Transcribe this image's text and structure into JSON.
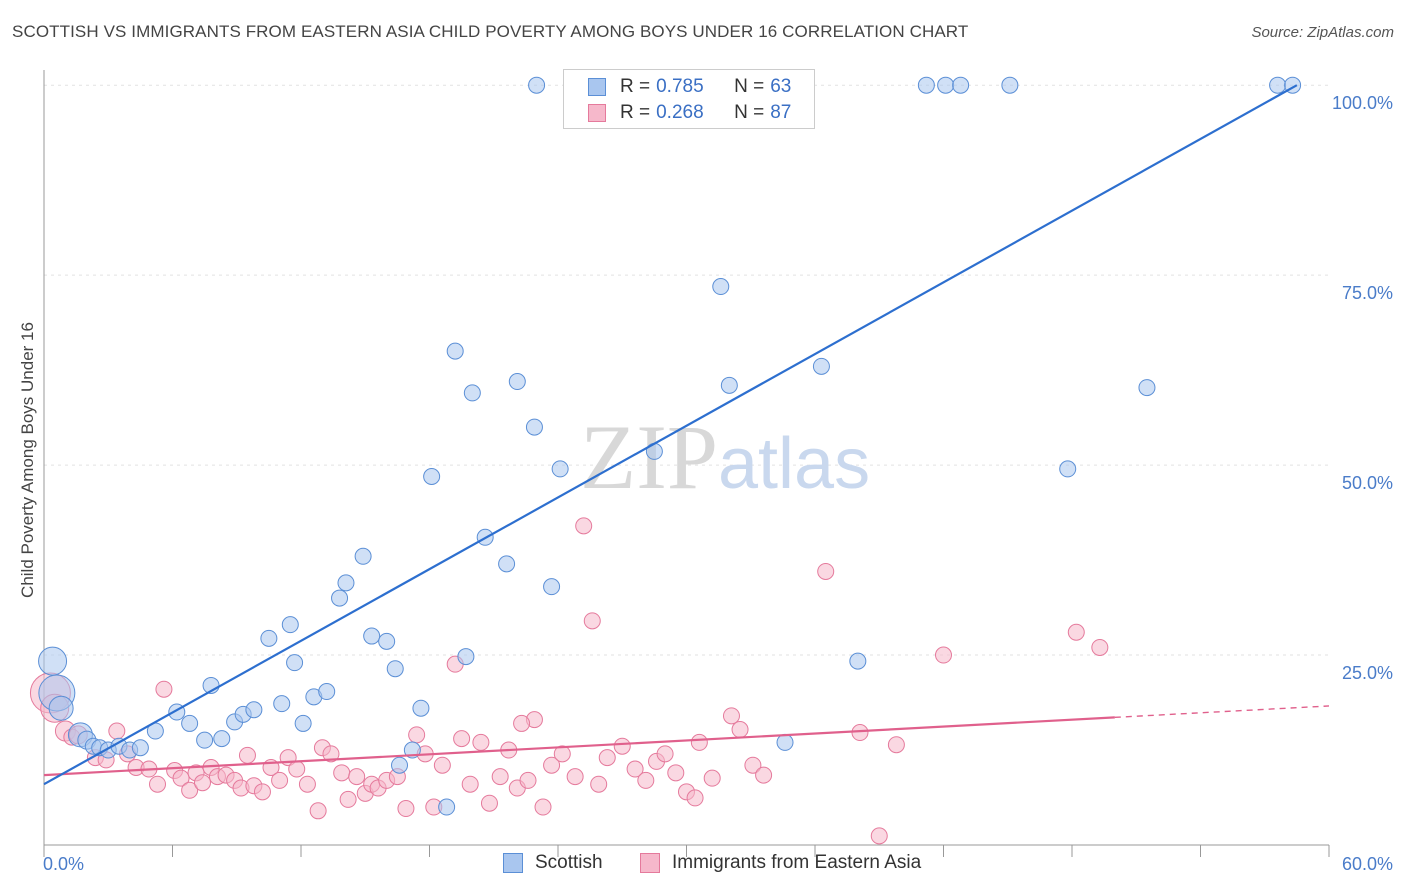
{
  "title": "SCOTTISH VS IMMIGRANTS FROM EASTERN ASIA CHILD POVERTY AMONG BOYS UNDER 16 CORRELATION CHART",
  "source": "Source: ZipAtlas.com",
  "watermark": {
    "zip": "ZIP",
    "atlas": "atlas"
  },
  "colors": {
    "scottish_fill": "#a9c6ef",
    "scottish_stroke": "#5b8fd6",
    "scottish_line": "#2d6fcf",
    "asia_fill": "#f6b8cb",
    "asia_stroke": "#e57a9c",
    "asia_line": "#e0608c",
    "tick_text": "#4a7cc9",
    "grid": "#e2e2e2"
  },
  "legend": {
    "rows": [
      {
        "r_label": "R =",
        "r_value": "0.785",
        "n_label": "N =",
        "n_value": "63"
      },
      {
        "r_label": "R =",
        "r_value": "0.268",
        "n_label": "N =",
        "n_value": "87"
      }
    ]
  },
  "bottom_legend": {
    "scottish": "Scottish",
    "asia": "Immigrants from Eastern Asia"
  },
  "chart_data": {
    "type": "scatter",
    "title": "SCOTTISH VS IMMIGRANTS FROM EASTERN ASIA CHILD POVERTY AMONG BOYS UNDER 16 CORRELATION CHART",
    "xlabel": "",
    "ylabel": "Child Poverty Among Boys Under 16",
    "xlim": [
      0,
      60
    ],
    "ylim": [
      0,
      102
    ],
    "x_tick_labels": [
      "0.0%",
      "60.0%"
    ],
    "y_tick_labels": [
      "100.0%",
      "75.0%",
      "50.0%",
      "25.0%"
    ],
    "y_ticks": [
      100,
      75,
      50,
      25
    ],
    "grid": true,
    "legend_position": "top-center",
    "series": [
      {
        "name": "Scottish",
        "r": 0.785,
        "n": 63,
        "trend": {
          "x": [
            0,
            58.5
          ],
          "y": [
            8,
            100
          ]
        },
        "points": [
          [
            0.4,
            24.2,
            14
          ],
          [
            0.6,
            20.0,
            18
          ],
          [
            0.8,
            18.0,
            12
          ],
          [
            1.7,
            14.5,
            12
          ],
          [
            2.0,
            13.8,
            9
          ],
          [
            2.3,
            13.0,
            8
          ],
          [
            2.6,
            12.8,
            8
          ],
          [
            3.0,
            12.5,
            8
          ],
          [
            3.5,
            13.0,
            8
          ],
          [
            4.0,
            12.5,
            8
          ],
          [
            4.5,
            12.8,
            8
          ],
          [
            5.2,
            15.0,
            8
          ],
          [
            6.2,
            17.5,
            8
          ],
          [
            6.8,
            16.0,
            8
          ],
          [
            7.5,
            13.8,
            8
          ],
          [
            7.8,
            21.0,
            8
          ],
          [
            8.3,
            14.0,
            8
          ],
          [
            8.9,
            16.2,
            8
          ],
          [
            9.3,
            17.2,
            8
          ],
          [
            9.8,
            17.8,
            8
          ],
          [
            10.5,
            27.2,
            8
          ],
          [
            11.1,
            18.6,
            8
          ],
          [
            11.5,
            29.0,
            8
          ],
          [
            11.7,
            24.0,
            8
          ],
          [
            12.1,
            16.0,
            8
          ],
          [
            12.6,
            19.5,
            8
          ],
          [
            13.2,
            20.2,
            8
          ],
          [
            13.8,
            32.5,
            8
          ],
          [
            14.1,
            34.5,
            8
          ],
          [
            14.9,
            38.0,
            8
          ],
          [
            15.3,
            27.5,
            8
          ],
          [
            16.0,
            26.8,
            8
          ],
          [
            16.4,
            23.2,
            8
          ],
          [
            16.6,
            10.5,
            8
          ],
          [
            17.2,
            12.5,
            8
          ],
          [
            17.6,
            18.0,
            8
          ],
          [
            18.1,
            48.5,
            8
          ],
          [
            18.8,
            5.0,
            8
          ],
          [
            19.2,
            65.0,
            8
          ],
          [
            19.7,
            24.8,
            8
          ],
          [
            20.0,
            59.5,
            8
          ],
          [
            20.6,
            40.5,
            8
          ],
          [
            21.6,
            37.0,
            8
          ],
          [
            22.1,
            61.0,
            8
          ],
          [
            22.9,
            55.0,
            8
          ],
          [
            23.0,
            100.0,
            8
          ],
          [
            23.7,
            34.0,
            8
          ],
          [
            24.1,
            49.5,
            8
          ],
          [
            26.8,
            100.0,
            8
          ],
          [
            28.5,
            51.8,
            8
          ],
          [
            31.6,
            73.5,
            8
          ],
          [
            32.0,
            60.5,
            8
          ],
          [
            34.6,
            13.5,
            8
          ],
          [
            36.3,
            63.0,
            8
          ],
          [
            38.0,
            24.2,
            8
          ],
          [
            41.2,
            100.0,
            8
          ],
          [
            42.1,
            100.0,
            8
          ],
          [
            42.8,
            100.0,
            8
          ],
          [
            45.1,
            100.0,
            8
          ],
          [
            47.8,
            49.5,
            8
          ],
          [
            51.5,
            60.2,
            8
          ],
          [
            57.6,
            100.0,
            8
          ],
          [
            58.3,
            100.0,
            8
          ]
        ]
      },
      {
        "name": "Immigrants from Eastern Asia",
        "r": 0.268,
        "n": 87,
        "trend": {
          "x": [
            0,
            50
          ],
          "y": [
            9.2,
            16.8
          ]
        },
        "trend_dashed": {
          "x": [
            50,
            60
          ],
          "y": [
            16.8,
            18.3
          ]
        },
        "points": [
          [
            0.3,
            20.0,
            20
          ],
          [
            0.5,
            18.0,
            14
          ],
          [
            1.0,
            15.0,
            10
          ],
          [
            1.3,
            14.2,
            8
          ],
          [
            1.6,
            14.5,
            9
          ],
          [
            2.4,
            11.5,
            8
          ],
          [
            2.9,
            11.2,
            8
          ],
          [
            3.4,
            15.0,
            8
          ],
          [
            3.9,
            12.0,
            8
          ],
          [
            4.3,
            10.2,
            8
          ],
          [
            4.9,
            10.0,
            8
          ],
          [
            5.3,
            8.0,
            8
          ],
          [
            5.6,
            20.5,
            8
          ],
          [
            6.1,
            9.8,
            8
          ],
          [
            6.4,
            8.8,
            8
          ],
          [
            6.8,
            7.2,
            8
          ],
          [
            7.1,
            9.5,
            8
          ],
          [
            7.4,
            8.2,
            8
          ],
          [
            7.8,
            10.2,
            8
          ],
          [
            8.1,
            9.0,
            8
          ],
          [
            8.5,
            9.2,
            8
          ],
          [
            8.9,
            8.5,
            8
          ],
          [
            9.2,
            7.5,
            8
          ],
          [
            9.5,
            11.8,
            8
          ],
          [
            9.8,
            7.8,
            8
          ],
          [
            10.2,
            7.0,
            8
          ],
          [
            10.6,
            10.2,
            8
          ],
          [
            11.0,
            8.5,
            8
          ],
          [
            11.4,
            11.5,
            8
          ],
          [
            11.8,
            10.0,
            8
          ],
          [
            12.3,
            8.0,
            8
          ],
          [
            12.8,
            4.5,
            8
          ],
          [
            13.0,
            12.8,
            8
          ],
          [
            13.4,
            12.0,
            8
          ],
          [
            13.9,
            9.5,
            8
          ],
          [
            14.2,
            6.0,
            8
          ],
          [
            14.6,
            9.0,
            8
          ],
          [
            15.0,
            6.8,
            8
          ],
          [
            15.3,
            8.0,
            8
          ],
          [
            15.6,
            7.5,
            8
          ],
          [
            16.0,
            8.5,
            8
          ],
          [
            16.5,
            9.0,
            8
          ],
          [
            16.9,
            4.8,
            8
          ],
          [
            17.4,
            14.5,
            8
          ],
          [
            17.8,
            12.0,
            8
          ],
          [
            18.2,
            5.0,
            8
          ],
          [
            18.6,
            10.5,
            8
          ],
          [
            19.2,
            23.8,
            8
          ],
          [
            19.5,
            14.0,
            8
          ],
          [
            19.9,
            8.0,
            8
          ],
          [
            20.4,
            13.5,
            8
          ],
          [
            20.8,
            5.5,
            8
          ],
          [
            21.3,
            9.0,
            8
          ],
          [
            21.7,
            12.5,
            8
          ],
          [
            22.1,
            7.5,
            8
          ],
          [
            22.6,
            8.5,
            8
          ],
          [
            22.9,
            16.5,
            8
          ],
          [
            23.3,
            5.0,
            8
          ],
          [
            23.7,
            10.5,
            8
          ],
          [
            24.2,
            12.0,
            8
          ],
          [
            24.8,
            9.0,
            8
          ],
          [
            25.2,
            42.0,
            8
          ],
          [
            25.6,
            29.5,
            8
          ],
          [
            25.9,
            8.0,
            8
          ],
          [
            26.3,
            11.5,
            8
          ],
          [
            27.0,
            13.0,
            8
          ],
          [
            27.6,
            10.0,
            8
          ],
          [
            28.1,
            8.5,
            8
          ],
          [
            28.6,
            11.0,
            8
          ],
          [
            29.0,
            12.0,
            8
          ],
          [
            29.5,
            9.5,
            8
          ],
          [
            30.0,
            7.0,
            8
          ],
          [
            30.6,
            13.5,
            8
          ],
          [
            31.2,
            8.8,
            8
          ],
          [
            32.1,
            17.0,
            8
          ],
          [
            32.5,
            15.2,
            8
          ],
          [
            33.1,
            10.5,
            8
          ],
          [
            33.6,
            9.2,
            8
          ],
          [
            36.5,
            36.0,
            8
          ],
          [
            38.1,
            14.8,
            8
          ],
          [
            39.0,
            1.2,
            8
          ],
          [
            39.8,
            13.2,
            8
          ],
          [
            42.0,
            25.0,
            8
          ],
          [
            48.2,
            28.0,
            8
          ],
          [
            49.3,
            26.0,
            8
          ],
          [
            30.4,
            6.2,
            8
          ],
          [
            22.3,
            16.0,
            8
          ]
        ]
      }
    ]
  }
}
